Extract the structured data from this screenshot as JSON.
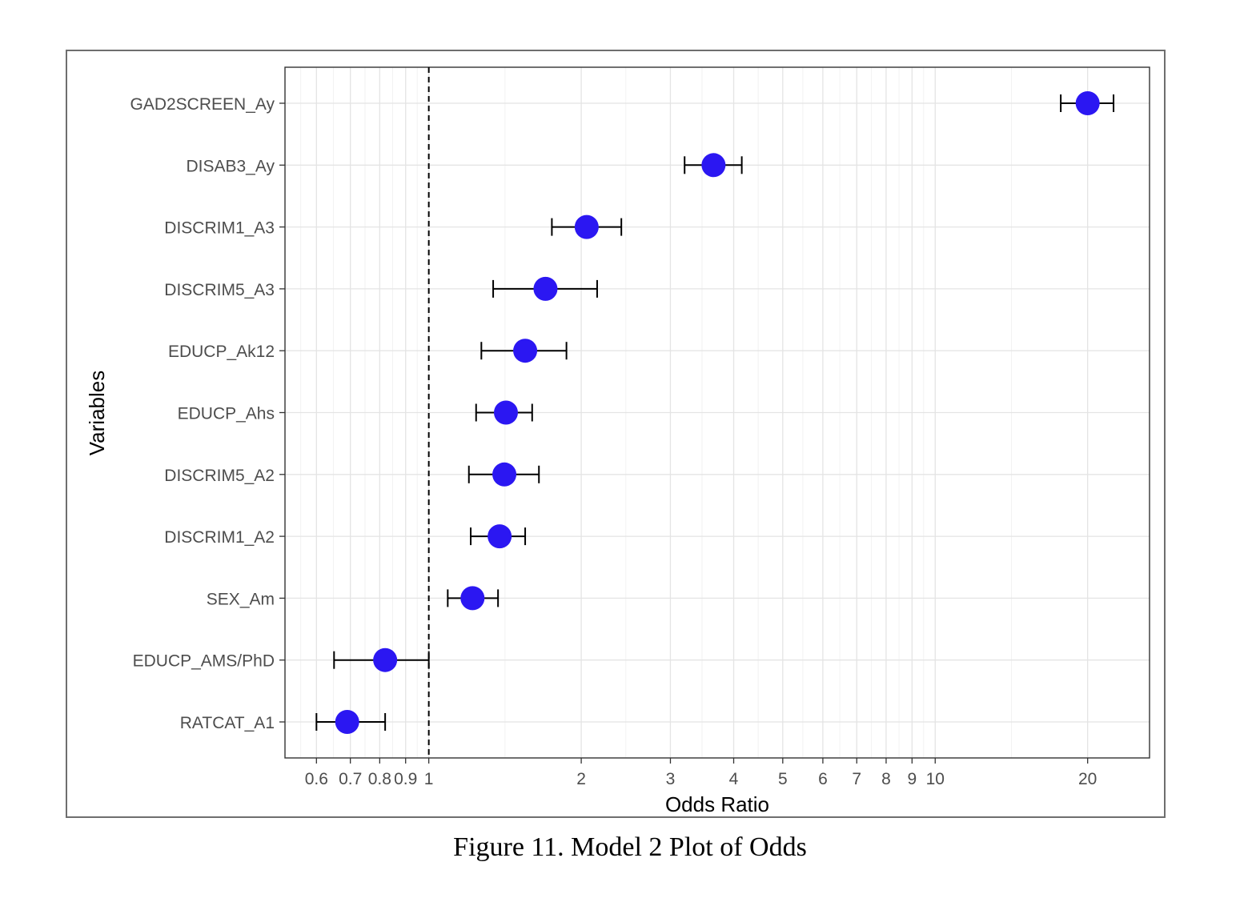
{
  "caption": "Figure 11. Model 2 Plot of Odds",
  "chart_data": {
    "type": "scatter",
    "xlabel": "Odds Ratio",
    "ylabel": "Variables",
    "x_scale": "log",
    "xlim": [
      0.52,
      26.5
    ],
    "x_ticks": [
      0.6,
      0.7,
      0.8,
      0.9,
      1,
      2,
      3,
      4,
      5,
      6,
      7,
      8,
      9,
      10,
      20
    ],
    "x_tick_labels": [
      "0.6",
      "0.7",
      "0.8",
      "0.9",
      "1",
      "2",
      "3",
      "4",
      "5",
      "6",
      "7",
      "8",
      "9",
      "10",
      "20"
    ],
    "reference_line": 1,
    "grid": true,
    "point_color": "#2b17f2",
    "categories": [
      "GAD2SCREEN_Ay",
      "DISAB3_Ay",
      "DISCRIM1_A3",
      "DISCRIM5_A3",
      "EDUCP_Ak12",
      "EDUCP_Ahs",
      "DISCRIM5_A2",
      "DISCRIM1_A2",
      "SEX_Am",
      "EDUCP_AMS/PhD",
      "RATCAT_A1"
    ],
    "estimates": [
      20.0,
      3.65,
      2.05,
      1.7,
      1.55,
      1.42,
      1.41,
      1.38,
      1.22,
      0.82,
      0.69
    ],
    "ci_lower": [
      17.7,
      3.2,
      1.75,
      1.34,
      1.27,
      1.24,
      1.2,
      1.21,
      1.09,
      0.65,
      0.6
    ],
    "ci_upper": [
      22.5,
      4.15,
      2.4,
      2.15,
      1.87,
      1.6,
      1.65,
      1.55,
      1.37,
      1.0,
      0.82
    ]
  }
}
